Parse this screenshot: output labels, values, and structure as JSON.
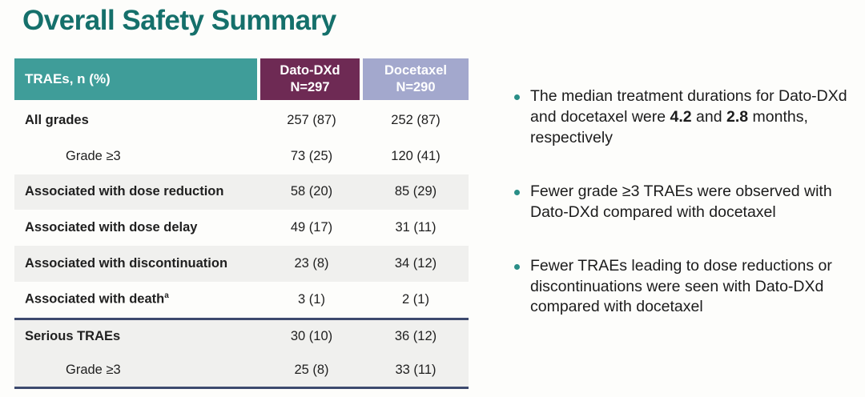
{
  "slide": {
    "title": "Overall Safety Summary"
  },
  "table": {
    "header": {
      "row_label": "TRAEs, n (%)",
      "dato_line1": "Dato-DXd",
      "dato_line2": "N=297",
      "docetaxel_line1": "Docetaxel",
      "docetaxel_line2": "N=290"
    },
    "rows": [
      {
        "label": "All grades",
        "dato": "257 (87)",
        "docetaxel": "252 (87)"
      },
      {
        "label": "Grade ≥3",
        "dato": "73 (25)",
        "docetaxel": "120 (41)"
      },
      {
        "label": "Associated with dose reduction",
        "dato": "58 (20)",
        "docetaxel": "85 (29)"
      },
      {
        "label": "Associated with dose delay",
        "dato": "49 (17)",
        "docetaxel": "31 (11)"
      },
      {
        "label": "Associated with discontinuation",
        "dato": "23 (8)",
        "docetaxel": "34 (12)"
      },
      {
        "label": "Associated with death",
        "sup": "a",
        "dato": "3 (1)",
        "docetaxel": "2 (1)"
      },
      {
        "label": "Serious TRAEs",
        "dato": "30 (10)",
        "docetaxel": "36 (12)"
      },
      {
        "label": "Grade ≥3",
        "dato": "25 (8)",
        "docetaxel": "33 (11)"
      }
    ]
  },
  "bullets": {
    "b1": {
      "pre": "The median treatment durations for Dato-DXd and docetaxel were ",
      "bold1": "4.2",
      "mid": " and ",
      "bold2": "2.8",
      "post": " months, respectively"
    },
    "b2": {
      "text": "Fewer grade ≥3 TRAEs were observed with Dato-DXd compared with docetaxel"
    },
    "b3": {
      "text": "Fewer TRAEs leading to dose reductions or discontinuations were seen with Dato-DXd compared with docetaxel"
    }
  },
  "colors": {
    "title_teal": "#15706b",
    "header_teal": "#3f9d99",
    "header_plum": "#6e2a54",
    "header_lavender": "#a3a8cd",
    "row_alt_gray": "#f0f0ee",
    "separator_navy": "#3d4a6e",
    "bullet_dot_teal": "#2a8e87"
  }
}
